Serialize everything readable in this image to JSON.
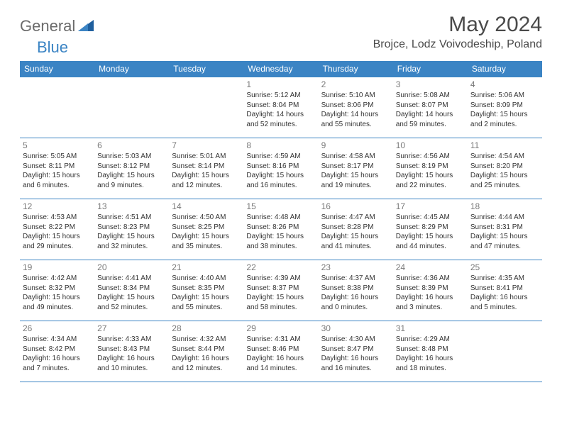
{
  "brand": {
    "part1": "General",
    "part2": "Blue"
  },
  "title": "May 2024",
  "location": "Brojce, Lodz Voivodeship, Poland",
  "colors": {
    "header_bg": "#3b84c4",
    "header_text": "#ffffff",
    "border": "#3b84c4",
    "daynum": "#7a7a7a",
    "text": "#333333",
    "brand_gray": "#6b6b6b",
    "brand_blue": "#3b84c4",
    "background": "#ffffff"
  },
  "fonts": {
    "title_size": 30,
    "location_size": 16,
    "th_size": 12,
    "daynum_size": 12,
    "cell_size": 10
  },
  "weekdays": [
    "Sunday",
    "Monday",
    "Tuesday",
    "Wednesday",
    "Thursday",
    "Friday",
    "Saturday"
  ],
  "grid": {
    "rows": 5,
    "cols": 7,
    "first_day_col": 3
  },
  "days": [
    {
      "n": "1",
      "sunrise": "5:12 AM",
      "sunset": "8:04 PM",
      "daylight": "14 hours and 52 minutes."
    },
    {
      "n": "2",
      "sunrise": "5:10 AM",
      "sunset": "8:06 PM",
      "daylight": "14 hours and 55 minutes."
    },
    {
      "n": "3",
      "sunrise": "5:08 AM",
      "sunset": "8:07 PM",
      "daylight": "14 hours and 59 minutes."
    },
    {
      "n": "4",
      "sunrise": "5:06 AM",
      "sunset": "8:09 PM",
      "daylight": "15 hours and 2 minutes."
    },
    {
      "n": "5",
      "sunrise": "5:05 AM",
      "sunset": "8:11 PM",
      "daylight": "15 hours and 6 minutes."
    },
    {
      "n": "6",
      "sunrise": "5:03 AM",
      "sunset": "8:12 PM",
      "daylight": "15 hours and 9 minutes."
    },
    {
      "n": "7",
      "sunrise": "5:01 AM",
      "sunset": "8:14 PM",
      "daylight": "15 hours and 12 minutes."
    },
    {
      "n": "8",
      "sunrise": "4:59 AM",
      "sunset": "8:16 PM",
      "daylight": "15 hours and 16 minutes."
    },
    {
      "n": "9",
      "sunrise": "4:58 AM",
      "sunset": "8:17 PM",
      "daylight": "15 hours and 19 minutes."
    },
    {
      "n": "10",
      "sunrise": "4:56 AM",
      "sunset": "8:19 PM",
      "daylight": "15 hours and 22 minutes."
    },
    {
      "n": "11",
      "sunrise": "4:54 AM",
      "sunset": "8:20 PM",
      "daylight": "15 hours and 25 minutes."
    },
    {
      "n": "12",
      "sunrise": "4:53 AM",
      "sunset": "8:22 PM",
      "daylight": "15 hours and 29 minutes."
    },
    {
      "n": "13",
      "sunrise": "4:51 AM",
      "sunset": "8:23 PM",
      "daylight": "15 hours and 32 minutes."
    },
    {
      "n": "14",
      "sunrise": "4:50 AM",
      "sunset": "8:25 PM",
      "daylight": "15 hours and 35 minutes."
    },
    {
      "n": "15",
      "sunrise": "4:48 AM",
      "sunset": "8:26 PM",
      "daylight": "15 hours and 38 minutes."
    },
    {
      "n": "16",
      "sunrise": "4:47 AM",
      "sunset": "8:28 PM",
      "daylight": "15 hours and 41 minutes."
    },
    {
      "n": "17",
      "sunrise": "4:45 AM",
      "sunset": "8:29 PM",
      "daylight": "15 hours and 44 minutes."
    },
    {
      "n": "18",
      "sunrise": "4:44 AM",
      "sunset": "8:31 PM",
      "daylight": "15 hours and 47 minutes."
    },
    {
      "n": "19",
      "sunrise": "4:42 AM",
      "sunset": "8:32 PM",
      "daylight": "15 hours and 49 minutes."
    },
    {
      "n": "20",
      "sunrise": "4:41 AM",
      "sunset": "8:34 PM",
      "daylight": "15 hours and 52 minutes."
    },
    {
      "n": "21",
      "sunrise": "4:40 AM",
      "sunset": "8:35 PM",
      "daylight": "15 hours and 55 minutes."
    },
    {
      "n": "22",
      "sunrise": "4:39 AM",
      "sunset": "8:37 PM",
      "daylight": "15 hours and 58 minutes."
    },
    {
      "n": "23",
      "sunrise": "4:37 AM",
      "sunset": "8:38 PM",
      "daylight": "16 hours and 0 minutes."
    },
    {
      "n": "24",
      "sunrise": "4:36 AM",
      "sunset": "8:39 PM",
      "daylight": "16 hours and 3 minutes."
    },
    {
      "n": "25",
      "sunrise": "4:35 AM",
      "sunset": "8:41 PM",
      "daylight": "16 hours and 5 minutes."
    },
    {
      "n": "26",
      "sunrise": "4:34 AM",
      "sunset": "8:42 PM",
      "daylight": "16 hours and 7 minutes."
    },
    {
      "n": "27",
      "sunrise": "4:33 AM",
      "sunset": "8:43 PM",
      "daylight": "16 hours and 10 minutes."
    },
    {
      "n": "28",
      "sunrise": "4:32 AM",
      "sunset": "8:44 PM",
      "daylight": "16 hours and 12 minutes."
    },
    {
      "n": "29",
      "sunrise": "4:31 AM",
      "sunset": "8:46 PM",
      "daylight": "16 hours and 14 minutes."
    },
    {
      "n": "30",
      "sunrise": "4:30 AM",
      "sunset": "8:47 PM",
      "daylight": "16 hours and 16 minutes."
    },
    {
      "n": "31",
      "sunrise": "4:29 AM",
      "sunset": "8:48 PM",
      "daylight": "16 hours and 18 minutes."
    }
  ],
  "labels": {
    "sunrise": "Sunrise:",
    "sunset": "Sunset:",
    "daylight": "Daylight:"
  }
}
